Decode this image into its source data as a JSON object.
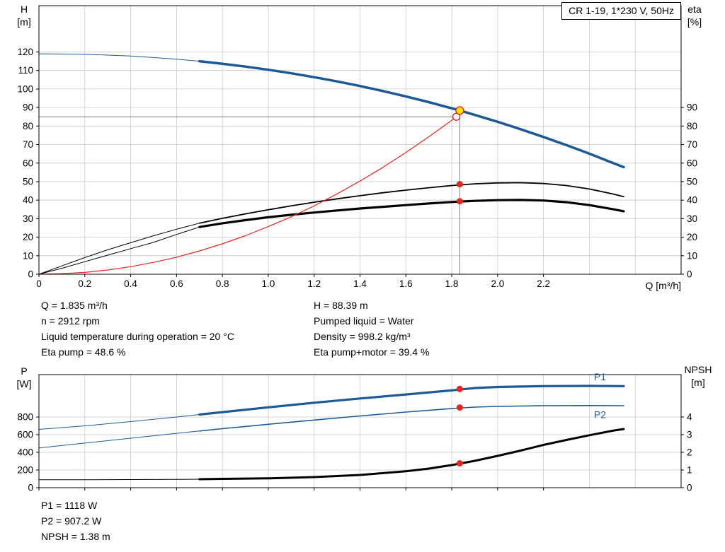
{
  "info_top": {
    "col1": [
      "Q = 1.835 m³/h",
      "n = 2912 rpm",
      "Liquid temperature during operation = 20 °C",
      "Eta pump = 48.6 %"
    ],
    "col2": [
      "H = 88.39 m",
      "Pumped liquid = Water",
      "Density = 998.2 kg/m³",
      "Eta pump+motor = 39.4 %"
    ]
  },
  "info_bottom": [
    "P1 = 1118 W",
    "P2 = 907.2 W",
    "NPSH = 1.38 m"
  ],
  "chart_data": [
    {
      "type": "line",
      "title": "CR 1-19, 1*230 V, 50Hz",
      "grid_color": "#c8c8c8",
      "accent_blue": "#1c5a96",
      "accent_red": "#e8251f",
      "duty_yellow": "#ffe100",
      "x_axis": {
        "label": "Q [m³/h]",
        "range": [
          0,
          2.8
        ],
        "ticks": [
          "0",
          "0.2",
          "0.4",
          "0.6",
          "0.8",
          "1.0",
          "1.2",
          "1.4",
          "1.6",
          "1.8",
          "2.0",
          "2.2"
        ],
        "grid_step": 0.2,
        "grid_max": 2.6,
        "show_labels": true
      },
      "left_axis": {
        "label": "H",
        "unit": "[m]",
        "range": [
          0,
          145
        ],
        "ticks": [
          0,
          10,
          20,
          30,
          40,
          50,
          60,
          70,
          80,
          90,
          100,
          110,
          120
        ]
      },
      "right_axis": {
        "label": "eta",
        "unit": "[%]",
        "range": [
          0,
          145
        ],
        "ticks": [
          0,
          10,
          20,
          30,
          40,
          50,
          60,
          70,
          80,
          90
        ]
      },
      "series": [
        {
          "name": "eta-pump",
          "axis": "left",
          "color": "#000000",
          "width_thin": 1,
          "width": 1.8,
          "thick_from": 0.7,
          "points": [
            [
              0,
              0
            ],
            [
              0.1,
              4.5
            ],
            [
              0.2,
              9
            ],
            [
              0.3,
              13.2
            ],
            [
              0.4,
              17
            ],
            [
              0.5,
              20.8
            ],
            [
              0.6,
              24.3
            ],
            [
              0.7,
              27.6
            ],
            [
              0.8,
              30.2
            ],
            [
              0.9,
              32.6
            ],
            [
              1,
              34.8
            ],
            [
              1.1,
              36.9
            ],
            [
              1.2,
              38.9
            ],
            [
              1.3,
              40.7
            ],
            [
              1.4,
              42.4
            ],
            [
              1.5,
              44
            ],
            [
              1.6,
              45.4
            ],
            [
              1.7,
              46.7
            ],
            [
              1.8,
              47.9
            ],
            [
              1.9,
              48.8
            ],
            [
              2,
              49.3
            ],
            [
              2.1,
              49.4
            ],
            [
              2.2,
              49
            ],
            [
              2.3,
              47.9
            ],
            [
              2.4,
              46
            ],
            [
              2.5,
              43.4
            ],
            [
              2.55,
              41.9
            ]
          ]
        },
        {
          "name": "eta-pump-motor",
          "axis": "left",
          "color": "#000000",
          "width_thin": 1,
          "width": 3.2,
          "thick_from": 0.7,
          "points": [
            [
              0,
              0
            ],
            [
              0.1,
              3.2
            ],
            [
              0.2,
              6.8
            ],
            [
              0.3,
              10.3
            ],
            [
              0.4,
              13.8
            ],
            [
              0.5,
              17.2
            ],
            [
              0.6,
              21.5
            ],
            [
              0.7,
              25.5
            ],
            [
              0.8,
              27.5
            ],
            [
              0.9,
              29.2
            ],
            [
              1,
              30.8
            ],
            [
              1.1,
              32.1
            ],
            [
              1.2,
              33.3
            ],
            [
              1.3,
              34.4
            ],
            [
              1.4,
              35.5
            ],
            [
              1.5,
              36.4
            ],
            [
              1.6,
              37.3
            ],
            [
              1.7,
              38.2
            ],
            [
              1.8,
              39
            ],
            [
              1.9,
              39.6
            ],
            [
              2,
              40
            ],
            [
              2.1,
              40.1
            ],
            [
              2.2,
              39.8
            ],
            [
              2.3,
              38.9
            ],
            [
              2.4,
              37.3
            ],
            [
              2.5,
              35.2
            ],
            [
              2.55,
              34
            ]
          ]
        },
        {
          "name": "system-curve",
          "axis": "left",
          "color": "#e8251f",
          "width": 1.2,
          "points": [
            [
              0,
              0
            ],
            [
              0.1,
              0.3
            ],
            [
              0.2,
              1
            ],
            [
              0.3,
              2.3
            ],
            [
              0.4,
              4.1
            ],
            [
              0.5,
              6.4
            ],
            [
              0.6,
              9.2
            ],
            [
              0.7,
              12.6
            ],
            [
              0.8,
              16.4
            ],
            [
              0.9,
              20.8
            ],
            [
              1,
              25.7
            ],
            [
              1.1,
              31
            ],
            [
              1.2,
              36.9
            ],
            [
              1.3,
              43.4
            ],
            [
              1.4,
              50.3
            ],
            [
              1.5,
              57.7
            ],
            [
              1.6,
              65.7
            ],
            [
              1.7,
              74.2
            ],
            [
              1.8,
              83.1
            ],
            [
              1.82,
              85
            ]
          ]
        },
        {
          "name": "head",
          "axis": "left",
          "color": "#1c5a96",
          "width_thin": 1,
          "width": 3.5,
          "thick_from": 0.7,
          "points": [
            [
              0,
              119
            ],
            [
              0.1,
              118.9
            ],
            [
              0.2,
              118.7
            ],
            [
              0.3,
              118.3
            ],
            [
              0.4,
              117.8
            ],
            [
              0.5,
              117
            ],
            [
              0.6,
              116.1
            ],
            [
              0.7,
              115
            ],
            [
              0.8,
              113.6
            ],
            [
              0.9,
              112.1
            ],
            [
              1,
              110.4
            ],
            [
              1.1,
              108.5
            ],
            [
              1.2,
              106.4
            ],
            [
              1.3,
              104.1
            ],
            [
              1.4,
              101.6
            ],
            [
              1.5,
              98.9
            ],
            [
              1.6,
              96
            ],
            [
              1.7,
              92.9
            ],
            [
              1.8,
              89.6
            ],
            [
              1.835,
              88.4
            ],
            [
              1.9,
              86
            ],
            [
              2,
              82.3
            ],
            [
              2.1,
              78.3
            ],
            [
              2.2,
              74.1
            ],
            [
              2.3,
              69.7
            ],
            [
              2.4,
              65.1
            ],
            [
              2.5,
              60.2
            ],
            [
              2.55,
              57.8
            ]
          ]
        }
      ],
      "ref_lines": [
        {
          "type": "h",
          "v": 85,
          "q1": 0,
          "q2": 1.82
        },
        {
          "type": "v",
          "q": 1.835,
          "v1": 0,
          "v2": 88.39
        }
      ],
      "markers": [
        {
          "name": "system-curve-end",
          "q": 1.82,
          "v": 85,
          "axis": "left",
          "r": 5,
          "fill": "#ffffff",
          "stroke": "#e8251f"
        },
        {
          "name": "duty-point",
          "q": 1.835,
          "v": 88.39,
          "axis": "left",
          "r": 5.5,
          "fill": "#ffe100",
          "stroke": "#e8251f"
        },
        {
          "name": "eta-pump-point",
          "q": 1.835,
          "v": 48.6,
          "axis": "left",
          "r": 4.5,
          "fill": "#e8251f"
        },
        {
          "name": "eta-pump-motor-point",
          "q": 1.835,
          "v": 39.4,
          "axis": "left",
          "r": 4.5,
          "fill": "#e8251f"
        }
      ]
    },
    {
      "type": "line",
      "grid_color": "#c8c8c8",
      "x_axis": {
        "label": "Q [m³/h]",
        "range": [
          0,
          2.8
        ],
        "ticks": [
          "0",
          "0.2",
          "0.4",
          "0.6",
          "0.8",
          "1.0",
          "1.2",
          "1.4",
          "1.6",
          "1.8",
          "2.0",
          "2.2"
        ],
        "grid_step": 0.2,
        "grid_max": 2.6,
        "show_labels": false
      },
      "left_axis": {
        "label": "P",
        "unit": "[W]",
        "range": [
          0,
          1280
        ],
        "ticks": [
          0,
          200,
          400,
          600,
          800
        ]
      },
      "right_axis": {
        "label": "NPSH",
        "unit": "[m]",
        "range": [
          0,
          6.4
        ],
        "ticks": [
          0,
          1,
          2,
          3,
          4
        ]
      },
      "series": [
        {
          "name": "p2",
          "axis": "left",
          "color": "#1c5a96",
          "width_thin": 1,
          "width": 1.6,
          "thick_from": 0.7,
          "points": [
            [
              0,
              450
            ],
            [
              0.2,
              505
            ],
            [
              0.4,
              560
            ],
            [
              0.6,
              615
            ],
            [
              0.7,
              642
            ],
            [
              0.8,
              668
            ],
            [
              1,
              718
            ],
            [
              1.2,
              766
            ],
            [
              1.4,
              812
            ],
            [
              1.6,
              856
            ],
            [
              1.8,
              896
            ],
            [
              1.9,
              912
            ],
            [
              2,
              920
            ],
            [
              2.2,
              928
            ],
            [
              2.4,
              930
            ],
            [
              2.55,
              928
            ]
          ]
        },
        {
          "name": "p1",
          "axis": "left",
          "color": "#1c5a96",
          "width_thin": 1,
          "width": 3.2,
          "thick_from": 0.7,
          "points": [
            [
              0,
              660
            ],
            [
              0.2,
              700
            ],
            [
              0.4,
              748
            ],
            [
              0.6,
              800
            ],
            [
              0.7,
              828
            ],
            [
              0.8,
              855
            ],
            [
              1,
              910
            ],
            [
              1.2,
              962
            ],
            [
              1.4,
              1010
            ],
            [
              1.6,
              1055
            ],
            [
              1.8,
              1102
            ],
            [
              1.9,
              1128
            ],
            [
              2,
              1140
            ],
            [
              2.2,
              1150
            ],
            [
              2.4,
              1152
            ],
            [
              2.55,
              1150
            ]
          ]
        },
        {
          "name": "npsh",
          "axis": "right",
          "color": "#000000",
          "width_thin": 1,
          "width": 3,
          "thick_from": 0.7,
          "points": [
            [
              0,
              0.45
            ],
            [
              0.2,
              0.45
            ],
            [
              0.4,
              0.46
            ],
            [
              0.6,
              0.47
            ],
            [
              0.7,
              0.48
            ],
            [
              0.8,
              0.5
            ],
            [
              1,
              0.53
            ],
            [
              1.2,
              0.6
            ],
            [
              1.4,
              0.72
            ],
            [
              1.6,
              0.93
            ],
            [
              1.7,
              1.08
            ],
            [
              1.8,
              1.28
            ],
            [
              1.9,
              1.52
            ],
            [
              2,
              1.8
            ],
            [
              2.1,
              2.1
            ],
            [
              2.2,
              2.42
            ],
            [
              2.3,
              2.7
            ],
            [
              2.4,
              2.97
            ],
            [
              2.5,
              3.22
            ],
            [
              2.55,
              3.32
            ]
          ]
        }
      ],
      "markers": [
        {
          "name": "p1-point",
          "q": 1.835,
          "v": 1118,
          "axis": "left",
          "r": 4.5,
          "fill": "#e8251f"
        },
        {
          "name": "p2-point",
          "q": 1.835,
          "v": 907.2,
          "axis": "left",
          "r": 4.5,
          "fill": "#e8251f"
        },
        {
          "name": "npsh-point",
          "q": 1.835,
          "v": 1.38,
          "axis": "right",
          "r": 4.5,
          "fill": "#e8251f"
        }
      ],
      "labels": [
        {
          "text": "P1",
          "q": 2.42,
          "v": 1215,
          "axis": "left",
          "color": "#1c5a96"
        },
        {
          "text": "P2",
          "q": 2.42,
          "v": 790,
          "axis": "left",
          "color": "#1c5a96"
        }
      ]
    }
  ]
}
